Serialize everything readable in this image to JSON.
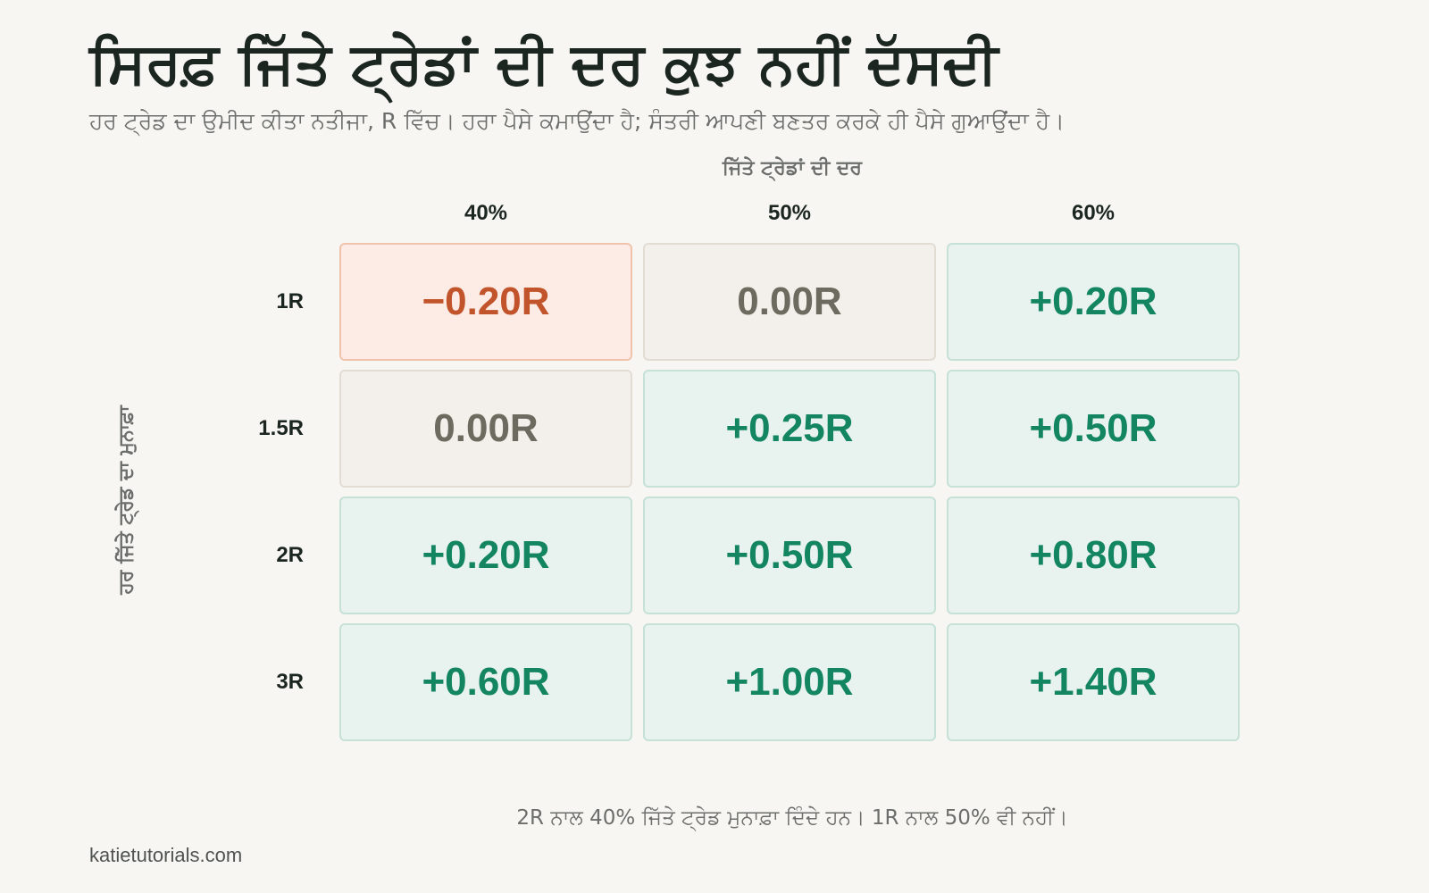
{
  "title": "ਸਿਰਫ਼ ਜਿੱਤੇ ਟ੍ਰੇਡਾਂ ਦੀ ਦਰ ਕੁਝ ਨਹੀਂ ਦੱਸਦੀ",
  "subtitle": "ਹਰ ਟ੍ਰੇਡ ਦਾ ਉਮੀਦ ਕੀਤਾ ਨਤੀਜਾ, R ਵਿੱਚ। ਹਰਾ ਪੈਸੇ ਕਮਾਉਂਦਾ ਹੈ; ਸੰਤਰੀ ਆਪਣੀ ਬਣਤਰ ਕਰਕੇ ਹੀ ਪੈਸੇ ਗੁਆਉਂਦਾ ਹੈ।",
  "footnote": "2R ਨਾਲ 40% ਜਿੱਤੇ ਟ੍ਰੇਡ ਮੁਨਾਫ਼ਾ ਦਿੰਦੇ ਹਨ। 1R ਨਾਲ 50% ਵੀ ਨਹੀਂ।",
  "source": "katietutorials.com",
  "colors": {
    "positive": "#138561",
    "zero": "#6d6a60",
    "negative": "#c2542b",
    "background": "#f8f6f2"
  },
  "chart_data": {
    "type": "heatmap",
    "title": "ਸਿਰਫ਼ ਜਿੱਤੇ ਟ੍ਰੇਡਾਂ ਦੀ ਦਰ ਕੁਝ ਨਹੀਂ ਦੱਸਦੀ",
    "xlabel": "ਜਿੱਤੇ ਟ੍ਰੇਡਾਂ ਦੀ ਦਰ",
    "ylabel": "ਹਰ ਜਿੱਤੇ ਟ੍ਰੇਡ ਦਾ ਮੁਨਾਫ਼ਾ",
    "x": [
      "40%",
      "50%",
      "60%"
    ],
    "y": [
      "1R",
      "1.5R",
      "2R",
      "3R"
    ],
    "values": [
      [
        -0.2,
        0.0,
        0.2
      ],
      [
        0.0,
        0.25,
        0.5
      ],
      [
        0.2,
        0.5,
        0.8
      ],
      [
        0.6,
        1.0,
        1.4
      ]
    ],
    "labels": [
      [
        "−0.20R",
        "0.00R",
        "+0.20R"
      ],
      [
        "0.00R",
        "+0.25R",
        "+0.50R"
      ],
      [
        "+0.20R",
        "+0.50R",
        "+0.80R"
      ],
      [
        "+0.60R",
        "+1.00R",
        "+1.40R"
      ]
    ]
  }
}
